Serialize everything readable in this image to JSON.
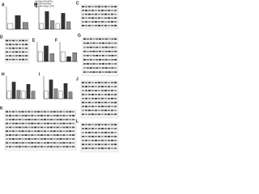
{
  "colors": [
    "#ffffff",
    "#333333",
    "#8c8c8c"
  ],
  "legend": [
    "Sham-Flox/Flox",
    "SAH-Flox/Flox",
    "SAH-Keap1 CKO"
  ],
  "panels": [
    {
      "label": "A",
      "values": [
        1,
        2.4,
        1.2
      ],
      "ylim": [
        0,
        4
      ]
    },
    {
      "label": "B",
      "values": [
        1,
        3.1,
        1.5,
        1,
        2.8,
        1.3
      ],
      "ylim": [
        0,
        4
      ]
    },
    {
      "label": "C"
    },
    {
      "label": "D"
    },
    {
      "label": "E",
      "values": [
        1,
        1.6,
        0.8
      ],
      "ylim": [
        0,
        2
      ]
    },
    {
      "label": "F",
      "values": [
        1,
        0.5,
        0.9
      ],
      "ylim": [
        0,
        2
      ]
    },
    {
      "label": "G"
    },
    {
      "label": "H",
      "values": [
        1,
        2.2,
        1.1,
        1,
        1.9,
        1.0
      ],
      "ylim": [
        0,
        3
      ]
    },
    {
      "label": "I",
      "values": [
        1,
        2.5,
        1.3,
        1,
        2.0,
        0.9
      ],
      "ylim": [
        0,
        3
      ]
    },
    {
      "label": "J"
    },
    {
      "label": "K"
    },
    {
      "label": "L"
    }
  ]
}
